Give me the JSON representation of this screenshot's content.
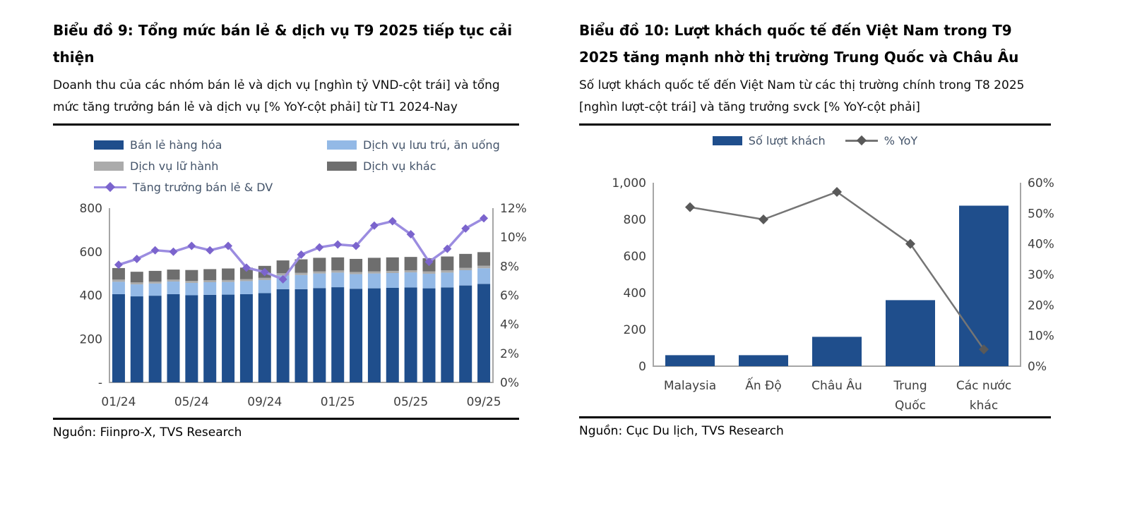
{
  "colors": {
    "navy": "#1f4e8c",
    "light_blue": "#93b9e6",
    "light_gray": "#ababab",
    "dark_gray": "#6e6e6e",
    "purple_line": "#9b8ce0",
    "purple_marker": "#7b64cd",
    "gray_line": "#757575",
    "gray_marker": "#595959",
    "axis": "#a6a6a6",
    "axis_text": "#3f3f3f",
    "legend_text": "#44546a"
  },
  "chart_data": [
    {
      "id": "retail-services",
      "type": "bar",
      "combo": "stacked-bar+line",
      "title": "Biểu đồ 9: Tổng mức bán lẻ & dịch vụ T9 2025 tiếp tục cải thiện",
      "subtitle": "Doanh thu của các nhóm bán lẻ và dịch vụ [nghìn tỷ VND-cột trái] và tổng mức tăng trưởng bán lẻ và dịch vụ [% YoY-cột phải] từ T1 2024-Nay",
      "source": "Nguồn: Fiinpro-X, TVS Research",
      "categories": [
        "01/24",
        "02/24",
        "03/24",
        "04/24",
        "05/24",
        "06/24",
        "07/24",
        "08/24",
        "09/24",
        "10/24",
        "11/24",
        "12/24",
        "01/25",
        "02/25",
        "03/25",
        "04/25",
        "05/25",
        "06/25",
        "07/25",
        "08/25",
        "09/25"
      ],
      "x_axis_visible_labels": [
        "01/24",
        "05/24",
        "09/24",
        "01/25",
        "05/25",
        "09/25"
      ],
      "series": [
        {
          "name": "Bán lẻ hàng hóa",
          "type": "bar",
          "color": "#1f4e8c",
          "values": [
            405,
            395,
            398,
            405,
            400,
            402,
            403,
            405,
            410,
            428,
            428,
            433,
            437,
            430,
            432,
            434,
            436,
            432,
            436,
            445,
            452
          ]
        },
        {
          "name": "Dịch vụ lưu trú, ăn uống",
          "type": "bar",
          "color": "#93b9e6",
          "values": [
            57,
            55,
            56,
            58,
            57,
            58,
            58,
            60,
            60,
            63,
            65,
            67,
            67,
            67,
            68,
            68,
            69,
            67,
            68,
            70,
            72
          ]
        },
        {
          "name": "Dịch vụ lữ hành",
          "type": "bar",
          "color": "#ababab",
          "values": [
            10,
            9,
            9,
            9,
            9,
            9,
            9,
            9,
            10,
            10,
            10,
            10,
            10,
            10,
            10,
            10,
            10,
            11,
            11,
            11,
            12
          ]
        },
        {
          "name": "Dịch vụ khác",
          "type": "bar",
          "color": "#6e6e6e",
          "values": [
            53,
            49,
            49,
            46,
            50,
            51,
            53,
            53,
            55,
            59,
            62,
            62,
            60,
            60,
            62,
            62,
            61,
            60,
            63,
            64,
            62
          ]
        },
        {
          "name": "Tăng trưởng bán lẻ & DV",
          "type": "line",
          "axis": "right",
          "color": "#9b8ce0",
          "marker_color": "#7b64cd",
          "values": [
            8.1,
            8.5,
            9.1,
            9.0,
            9.4,
            9.1,
            9.4,
            7.9,
            7.6,
            7.1,
            8.8,
            9.3,
            9.5,
            9.4,
            10.8,
            11.1,
            10.2,
            8.3,
            9.2,
            10.6,
            11.3
          ]
        }
      ],
      "left_axis": {
        "min": 0,
        "max": 800,
        "ticks": [
          800,
          600,
          400,
          200,
          0
        ],
        "tick_labels": [
          "800",
          "600",
          "400",
          "200",
          "-"
        ]
      },
      "right_axis": {
        "min": 0,
        "max": 12,
        "ticks": [
          12,
          10,
          8,
          6,
          4,
          2,
          0
        ],
        "tick_labels": [
          "12%",
          "10%",
          "8%",
          "6%",
          "4%",
          "2%",
          "0%"
        ]
      }
    },
    {
      "id": "international-visitors",
      "type": "bar",
      "combo": "bar+line",
      "title": "Biểu đồ 10: Lượt khách quốc tế đến Việt Nam trong T9 2025 tăng mạnh nhờ thị trường Trung Quốc và Châu Âu",
      "subtitle": "Số lượt khách quốc tế đến Việt Nam từ các thị trường chính trong T8 2025 [nghìn lượt-cột trái] và tăng trưởng svck [% YoY-cột phải]",
      "source": "Nguồn: Cục Du lịch, TVS Research",
      "categories": [
        "Malaysia",
        "Ấn Độ",
        "Châu Âu",
        "Trung Quốc",
        "Các nước khác"
      ],
      "category_label_lines": [
        [
          "Malaysia"
        ],
        [
          "Ấn Độ"
        ],
        [
          "Châu Âu"
        ],
        [
          "Trung",
          "Quốc"
        ],
        [
          "Các nước",
          "khác"
        ]
      ],
      "series": [
        {
          "name": "Số lượt khách",
          "type": "bar",
          "color": "#1f4e8c",
          "values": [
            60,
            60,
            160,
            360,
            875
          ]
        },
        {
          "name": "% YoY",
          "type": "line",
          "axis": "right",
          "color": "#757575",
          "marker_color": "#595959",
          "values": [
            52,
            48,
            57,
            40,
            5.5
          ]
        }
      ],
      "left_axis": {
        "min": 0,
        "max": 1000,
        "ticks": [
          1000,
          800,
          600,
          400,
          200,
          0
        ],
        "tick_labels": [
          "1,000",
          "800",
          "600",
          "400",
          "200",
          "0"
        ]
      },
      "right_axis": {
        "min": 0,
        "max": 60,
        "ticks": [
          60,
          50,
          40,
          30,
          20,
          10,
          0
        ],
        "tick_labels": [
          "60%",
          "50%",
          "40%",
          "30%",
          "20%",
          "10%",
          "0%"
        ]
      }
    }
  ]
}
